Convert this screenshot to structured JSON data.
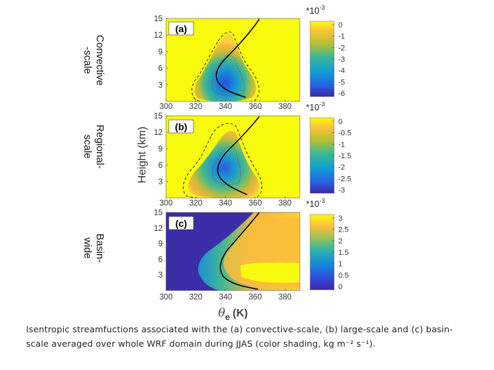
{
  "figure": {
    "ylabel": "Height (km)",
    "xlabel_symbol": "θ",
    "xlabel_sub": "e",
    "xlabel_unit": "(K)",
    "xticks": [
      "300",
      "320",
      "340",
      "360",
      "380"
    ],
    "yticks": [
      "15",
      "12",
      "9",
      "6",
      "3"
    ]
  },
  "chart_data": [
    {
      "type": "heatmap",
      "panel": "(a)",
      "row_label_line1": "Convective",
      "row_label_line2": "-scale",
      "scale_note": "*10",
      "scale_exp": "-3",
      "colorbar_ticks": [
        "0",
        "-1",
        "-2",
        "-3",
        "-4",
        "-5",
        "-6"
      ],
      "colorbar_range": [
        -6,
        0
      ],
      "xlim": [
        300,
        390
      ],
      "ylim": [
        0,
        15
      ],
      "min_value": -6.0,
      "min_location": {
        "theta_e": 348,
        "height_km": 3
      }
    },
    {
      "type": "heatmap",
      "panel": "(b)",
      "row_label_line1": "Regional-",
      "row_label_line2": "scale",
      "scale_note": "*10",
      "scale_exp": "-3",
      "colorbar_ticks": [
        "0",
        "-0.5",
        "-1",
        "-1.5",
        "-2",
        "-2.5",
        "-3"
      ],
      "colorbar_range": [
        -3,
        0
      ],
      "xlim": [
        300,
        390
      ],
      "ylim": [
        0,
        15
      ],
      "min_value": -3.0,
      "min_location": {
        "theta_e": 340,
        "height_km": 5.5
      }
    },
    {
      "type": "heatmap",
      "panel": "(c)",
      "row_label_line1": "Basin-",
      "row_label_line2": "wide",
      "scale_note": "*10",
      "scale_exp": "-3",
      "colorbar_ticks": [
        "3",
        "2.5",
        "2",
        "1.5",
        "1",
        "0.5",
        "0"
      ],
      "colorbar_range": [
        0,
        3
      ],
      "xlim": [
        300,
        390
      ],
      "ylim": [
        0,
        15
      ],
      "max_value": 3.0,
      "max_location": {
        "theta_e": 380,
        "height_km": 2.5
      }
    }
  ],
  "caption": {
    "line1": "Isentropic streamfuctions associated with the (a) convective-scale, (b) large-scale and (c) basin-",
    "line2": "scale averaged over whole WRF domain during JJAS (color shading, kg m⁻² s⁻¹)."
  }
}
